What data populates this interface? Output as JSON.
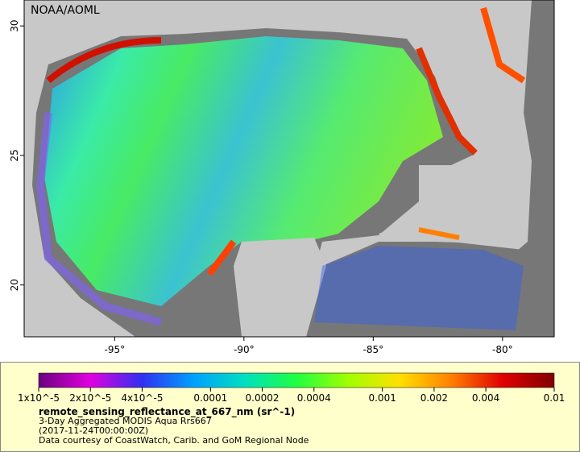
{
  "chart_data": {
    "type": "map",
    "annotation": "NOAA/AOML",
    "xlim": [
      -98.5,
      -78
    ],
    "ylim": [
      18,
      31
    ],
    "xticks": [
      {
        "value": -95,
        "label": "-95°"
      },
      {
        "value": -90,
        "label": "-90°"
      },
      {
        "value": -85,
        "label": "-85°"
      },
      {
        "value": -80,
        "label": "-80°"
      }
    ],
    "yticks": [
      20,
      25,
      30
    ],
    "colorbar": {
      "title": "remote_sensing_reflectance_at_667_nm (sr^-1)",
      "log_scale": true,
      "lim": [
        1e-05,
        0.01
      ],
      "colormap": [
        "#6a0080",
        "#e000e0",
        "#3030f0",
        "#00a0ff",
        "#00e0c0",
        "#20ff40",
        "#a0ff00",
        "#ffe000",
        "#ff8000",
        "#e00000",
        "#800000"
      ],
      "ticks": [
        {
          "value": 1e-05,
          "label": "1x10^-5"
        },
        {
          "value": 2e-05,
          "label": "2x10^-5"
        },
        {
          "value": 4e-05,
          "label": "4x10^-5"
        },
        {
          "value": 0.0001,
          "label": "0.0001"
        },
        {
          "value": 0.0002,
          "label": "0.0002"
        },
        {
          "value": 0.0004,
          "label": "0.0004"
        },
        {
          "value": 0.001,
          "label": "0.001"
        },
        {
          "value": 0.002,
          "label": "0.002"
        },
        {
          "value": 0.004,
          "label": "0.004"
        },
        {
          "value": 0.01,
          "label": "0.01"
        }
      ]
    },
    "notes": [
      "3-Day Aggregated MODIS Aqua Rrs667",
      "(2017-11-24T00:00:00Z)",
      "Data courtesy of CoastWatch, Carib. and GoM Regional Node"
    ]
  }
}
